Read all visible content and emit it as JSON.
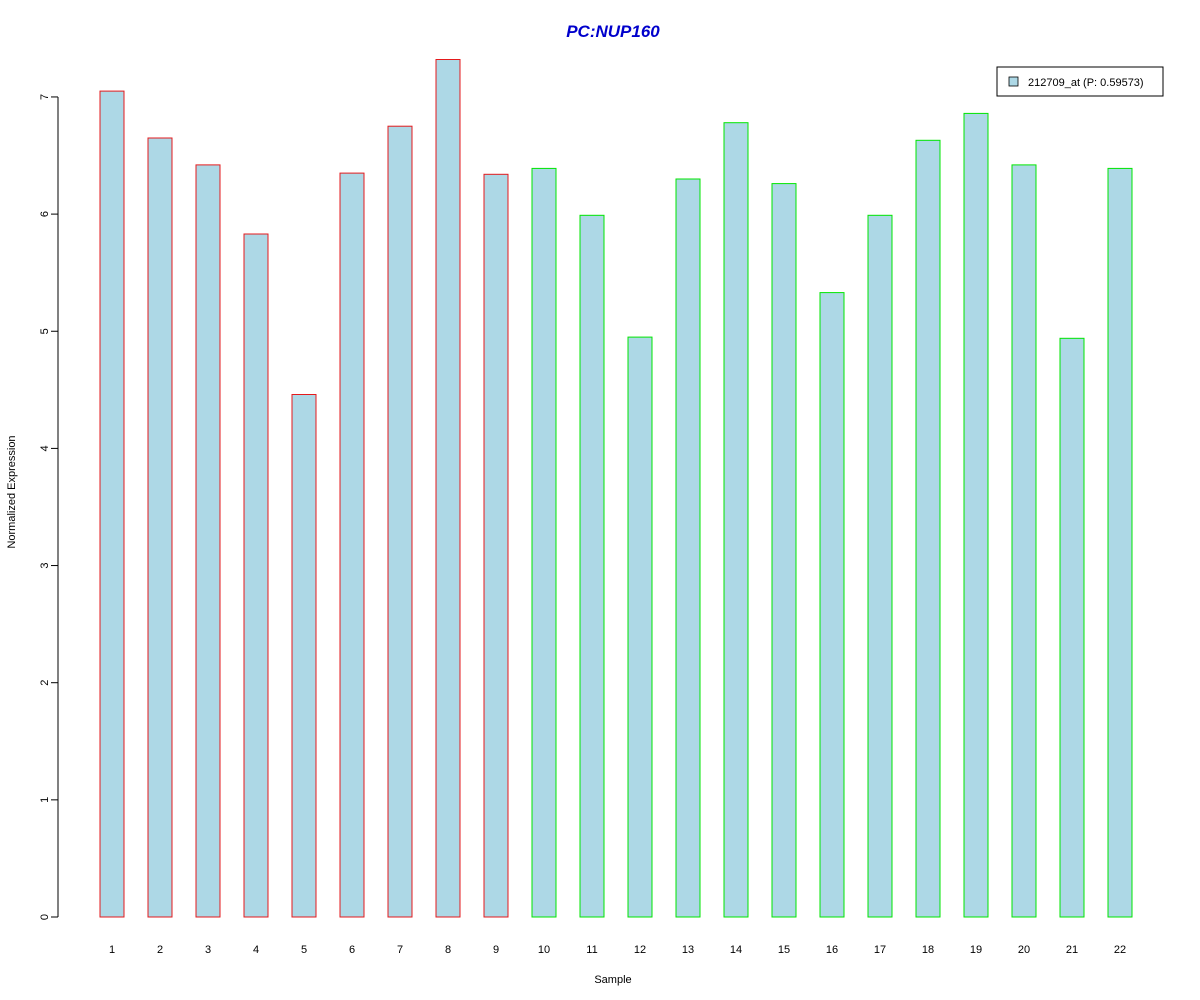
{
  "chart_data": {
    "type": "bar",
    "title": "PC:NUP160",
    "xlabel": "Sample",
    "ylabel": "Normalized Expression",
    "ylim": [
      0,
      7.3
    ],
    "y_ticks": [
      0,
      1,
      2,
      3,
      4,
      5,
      6,
      7
    ],
    "grid": false,
    "legend_position": "top-right",
    "categories": [
      "1",
      "2",
      "3",
      "4",
      "5",
      "6",
      "7",
      "8",
      "9",
      "10",
      "11",
      "12",
      "13",
      "14",
      "15",
      "16",
      "17",
      "18",
      "19",
      "20",
      "21",
      "22"
    ],
    "series": [
      {
        "name": "212709_at (P: 0.59573)",
        "values": [
          7.05,
          6.65,
          6.42,
          5.83,
          4.46,
          6.35,
          6.75,
          7.32,
          6.34,
          6.39,
          5.99,
          4.95,
          6.3,
          6.78,
          6.26,
          5.33,
          5.99,
          6.63,
          6.86,
          6.42,
          4.94,
          6.39
        ],
        "group": [
          "a",
          "a",
          "a",
          "a",
          "a",
          "a",
          "a",
          "a",
          "a",
          "b",
          "b",
          "b",
          "b",
          "b",
          "b",
          "b",
          "b",
          "b",
          "b",
          "b",
          "b",
          "b"
        ]
      }
    ],
    "colors": {
      "fill": "#add8e6",
      "border_group_a": "#e41a1c",
      "border_group_b": "#00e600",
      "title": "#0000cc",
      "axis": "#000000"
    }
  }
}
